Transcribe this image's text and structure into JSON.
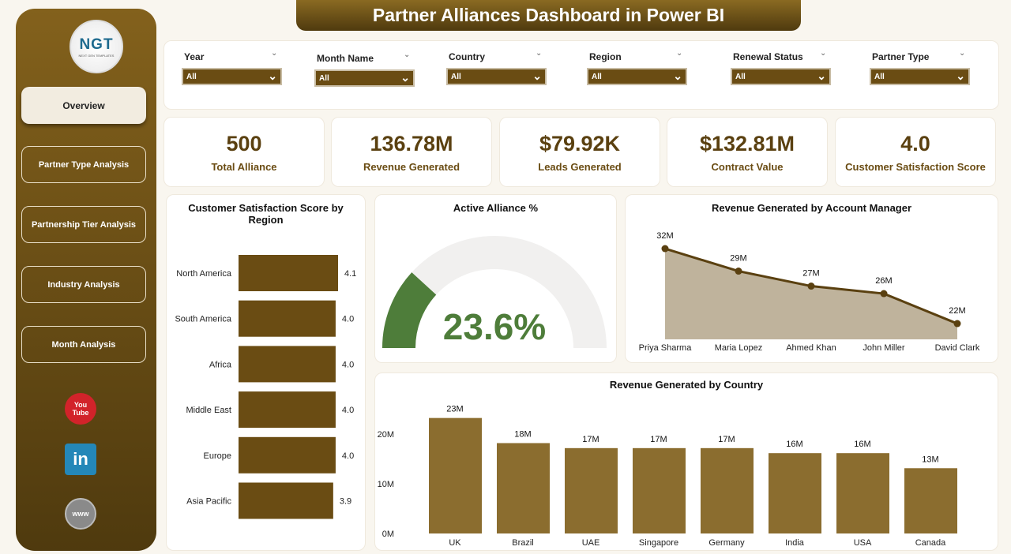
{
  "header": {
    "title": "Partner Alliances Dashboard in Power BI"
  },
  "sidebar": {
    "logo": {
      "text": "NGT",
      "subtitle": "NEXT GEN TEMPLATES"
    },
    "items": [
      {
        "label": "Overview",
        "active": true
      },
      {
        "label": "Partner Type Analysis"
      },
      {
        "label": "Partnership Tier Analysis"
      },
      {
        "label": "Industry Analysis"
      },
      {
        "label": "Month Analysis"
      }
    ],
    "social": [
      {
        "icon": "youtube-icon",
        "text": "You Tube"
      },
      {
        "icon": "linkedin-icon",
        "text": "in"
      },
      {
        "icon": "globe-icon",
        "text": "www"
      }
    ]
  },
  "filters": [
    {
      "label": "Year",
      "value": "All"
    },
    {
      "label": "Month Name",
      "value": "All"
    },
    {
      "label": "Country",
      "value": "All"
    },
    {
      "label": "Region",
      "value": "All"
    },
    {
      "label": "Renewal Status",
      "value": "All"
    },
    {
      "label": "Partner Type",
      "value": "All"
    }
  ],
  "kpis": [
    {
      "value": "500",
      "label": "Total Alliance"
    },
    {
      "value": "136.78M",
      "label": "Revenue Generated"
    },
    {
      "value": "$79.92K",
      "label": "Leads Generated"
    },
    {
      "value": "$132.81M",
      "label": "Contract Value"
    },
    {
      "value": "4.0",
      "label": "Customer Satisfaction Score"
    }
  ],
  "colors": {
    "brand": "#6a4c13",
    "gauge": "#4e7d3a",
    "area": "#bfb39c",
    "bar": "#8b6d2f"
  },
  "chart_data": [
    {
      "type": "bar",
      "orientation": "horizontal",
      "title": "Customer Satisfaction Score by Region",
      "categories": [
        "North America",
        "South America",
        "Africa",
        "Middle East",
        "Europe",
        "Asia Pacific"
      ],
      "values": [
        4.1,
        4.0,
        4.0,
        4.0,
        4.0,
        3.9
      ],
      "labels": [
        "4.1",
        "4.0",
        "4.0",
        "4.0",
        "4.0",
        "3.9"
      ],
      "xlim": [
        0,
        4.1
      ]
    },
    {
      "type": "gauge",
      "title": "Active Alliance %",
      "value": 23.6,
      "label": "23.6%",
      "range": [
        0,
        100
      ]
    },
    {
      "type": "area",
      "title": "Revenue Generated by Account Manager",
      "categories": [
        "Priya Sharma",
        "Maria Lopez",
        "Ahmed Khan",
        "John Miller",
        "David Clark"
      ],
      "values": [
        32,
        29,
        27,
        26,
        22
      ],
      "labels": [
        "32M",
        "29M",
        "27M",
        "26M",
        "22M"
      ]
    },
    {
      "type": "bar",
      "title": "Revenue Generated by Country",
      "categories": [
        "UK",
        "Brazil",
        "UAE",
        "Singapore",
        "Germany",
        "India",
        "USA",
        "Canada"
      ],
      "values": [
        23,
        18,
        17,
        17,
        17,
        16,
        16,
        13
      ],
      "labels": [
        "23M",
        "18M",
        "17M",
        "17M",
        "17M",
        "16M",
        "16M",
        "13M"
      ],
      "yticks": [
        "0M",
        "10M",
        "20M"
      ],
      "ylim": [
        0,
        25
      ]
    }
  ]
}
